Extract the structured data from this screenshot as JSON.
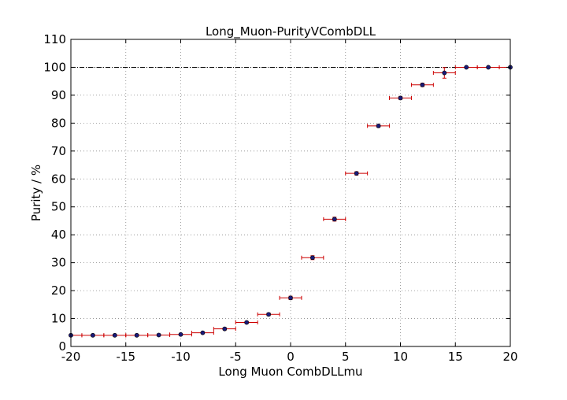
{
  "chart_data": {
    "type": "scatter",
    "title": "Long_Muon-PurityVCombDLL",
    "xlabel": "Long Muon CombDLLmu",
    "ylabel": "Purity / %",
    "xlim": [
      -20,
      20
    ],
    "ylim": [
      0,
      110
    ],
    "xticks": [
      -20,
      -15,
      -10,
      -5,
      0,
      5,
      10,
      15,
      20
    ],
    "yticks": [
      0,
      10,
      20,
      30,
      40,
      50,
      60,
      70,
      80,
      90,
      100,
      110
    ],
    "grid": true,
    "reference_line": {
      "y": 100,
      "style": "dash-dot",
      "color": "#000000"
    },
    "marker_color": "#1a1a7a",
    "errorbar_color": "#cc0000",
    "series": [
      {
        "x": [
          -20,
          -18,
          -16,
          -14,
          -12,
          -10,
          -8,
          -6,
          -4,
          -2,
          0,
          2,
          4,
          6,
          8,
          10,
          12,
          14,
          16,
          18,
          20
        ],
        "y": [
          4.0,
          4.0,
          4.0,
          4.0,
          4.1,
          4.3,
          4.9,
          6.3,
          8.6,
          11.5,
          17.4,
          31.8,
          45.6,
          62.0,
          79.0,
          89.0,
          93.7,
          98.0,
          100,
          100,
          100
        ],
        "xerr": [
          1,
          1,
          1,
          1,
          1,
          1,
          1,
          1,
          1,
          1,
          1,
          1,
          1,
          1,
          1,
          1,
          1,
          1,
          1,
          1,
          1
        ],
        "yerr": [
          0.3,
          0.3,
          0.3,
          0.3,
          0.3,
          0.3,
          0.3,
          0.4,
          0.4,
          0.5,
          0.6,
          0.7,
          0.7,
          0.6,
          0.5,
          0.5,
          0.6,
          1.9,
          0,
          0,
          0
        ]
      }
    ]
  }
}
